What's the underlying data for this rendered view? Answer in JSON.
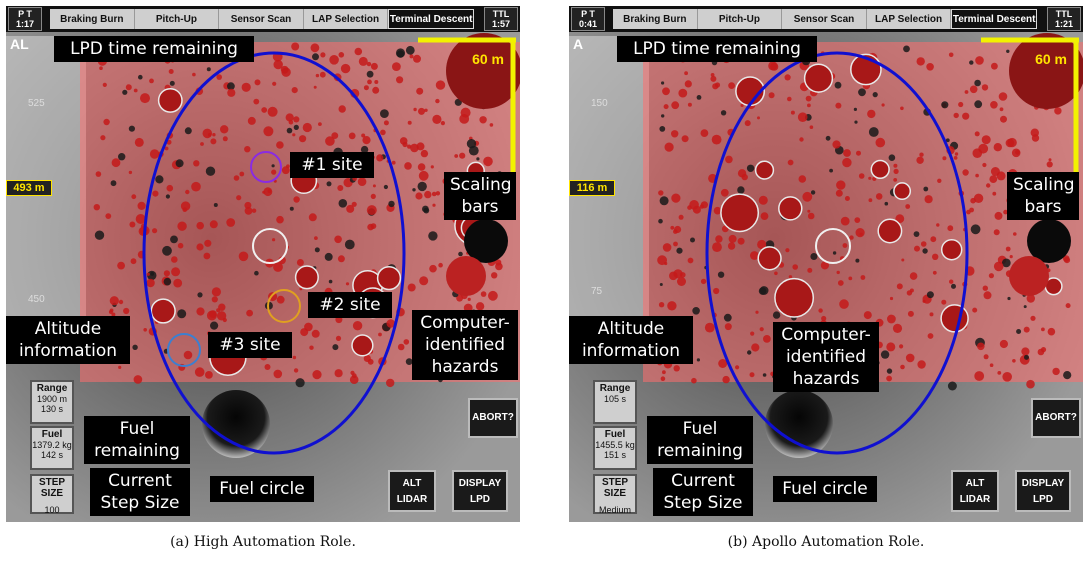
{
  "panel_a": {
    "pt": [
      "P T",
      "1:17"
    ],
    "ttl": [
      "TTL",
      "1:57"
    ],
    "tabs": [
      "Braking Burn",
      "Pitch-Up",
      "Sensor Scan",
      "LAP Selection",
      "Terminal Descent"
    ],
    "active_tab": "Terminal Descent",
    "al_mark": "AL",
    "alt_ticks": [
      "525",
      "450"
    ],
    "alt_value": "493 m",
    "scale_value": "60 m",
    "range": {
      "label": "Range",
      "line1": "1900 m",
      "line2": "130 s"
    },
    "fuel": {
      "label": "Fuel",
      "line1": "1379.2 kg",
      "line2": "142 s"
    },
    "step": {
      "label": "STEP SIZE",
      "value": "100"
    },
    "abort_label": "ABORT?",
    "alt_button": [
      "ALT",
      "LIDAR"
    ],
    "display_button": [
      "DISPLAY",
      "LPD"
    ],
    "callouts": {
      "lpd_time": "LPD time remaining",
      "site1": "#1 site",
      "site2": "#2 site",
      "site3": "#3 site",
      "scaling_bars": [
        "Scaling",
        "bars"
      ],
      "altitude_info": [
        "Altitude",
        "information"
      ],
      "hazards": [
        "Computer-",
        "identified",
        "hazards"
      ],
      "fuel_remaining": [
        "Fuel",
        "remaining"
      ],
      "step_size": [
        "Current",
        "Step Size"
      ],
      "fuel_circle": "Fuel circle"
    },
    "caption": "(a) High Automation Role."
  },
  "panel_b": {
    "pt": [
      "P T",
      "0:41"
    ],
    "ttl": [
      "TTL",
      "1:21"
    ],
    "tabs": [
      "Braking Burn",
      "Pitch-Up",
      "Sensor Scan",
      "LAP Selection",
      "Terminal Descent"
    ],
    "active_tab": "Terminal Descent",
    "al_mark": "A",
    "alt_ticks": [
      "150",
      "75"
    ],
    "alt_value": "116 m",
    "scale_value": "60 m",
    "range": {
      "label": "Range",
      "line1": "",
      "line2": "105 s"
    },
    "fuel": {
      "label": "Fuel",
      "line1": "1455.5 kg",
      "line2": "151 s"
    },
    "step": {
      "label": "STEP SIZE",
      "value": "Medium"
    },
    "abort_label": "ABORT?",
    "alt_button": [
      "ALT",
      "LIDAR"
    ],
    "display_button": [
      "DISPLAY",
      "LPD"
    ],
    "callouts": {
      "lpd_time": "LPD time remaining",
      "scaling_bars": [
        "Scaling",
        "bars"
      ],
      "altitude_info": [
        "Altitude",
        "information"
      ],
      "hazards": [
        "Computer-",
        "identified",
        "hazards"
      ],
      "fuel_remaining": [
        "Fuel",
        "remaining"
      ],
      "step_size": [
        "Current",
        "Step Size"
      ],
      "fuel_circle": "Fuel circle"
    },
    "caption": "(b) Apollo Automation Role."
  },
  "colors": {
    "fuel_circle": "#1010d0",
    "hazard": "#d01818",
    "scale_bar": "#f2f200",
    "site1": "#8a2be2",
    "site2": "#e0a020",
    "site3": "#3c7fd0",
    "selected_site": "#f0f0f0"
  }
}
